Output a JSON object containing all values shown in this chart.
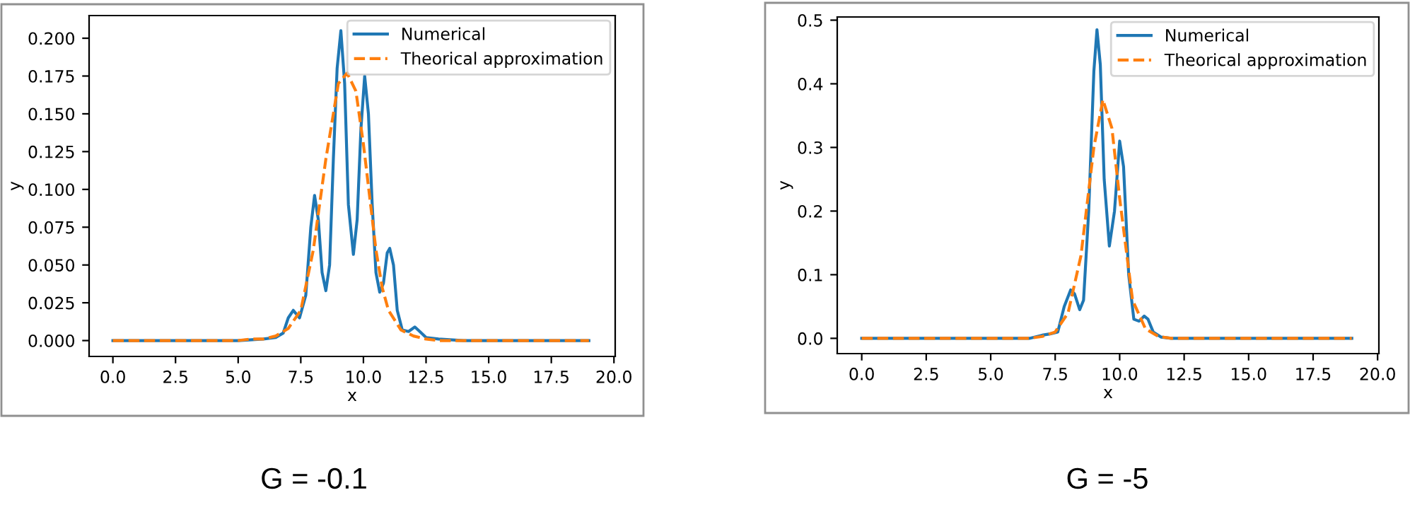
{
  "chart_data": [
    {
      "type": "line",
      "xlabel": "x",
      "ylabel": "y",
      "xlim": [
        -0.95,
        20.05
      ],
      "ylim": [
        -0.0105,
        0.215
      ],
      "xticks": [
        {
          "value": 0,
          "label": "0.0"
        },
        {
          "value": 2.5,
          "label": "2.5"
        },
        {
          "value": 5,
          "label": "5.0"
        },
        {
          "value": 7.5,
          "label": "7.5"
        },
        {
          "value": 10,
          "label": "10.0"
        },
        {
          "value": 12.5,
          "label": "12.5"
        },
        {
          "value": 15,
          "label": "15.0"
        },
        {
          "value": 17.5,
          "label": "17.5"
        },
        {
          "value": 20,
          "label": "20.0"
        }
      ],
      "yticks": [
        {
          "value": 0,
          "label": "0.000"
        },
        {
          "value": 0.025,
          "label": "0.025"
        },
        {
          "value": 0.05,
          "label": "0.050"
        },
        {
          "value": 0.075,
          "label": "0.075"
        },
        {
          "value": 0.1,
          "label": "0.100"
        },
        {
          "value": 0.125,
          "label": "0.125"
        },
        {
          "value": 0.15,
          "label": "0.150"
        },
        {
          "value": 0.175,
          "label": "0.175"
        },
        {
          "value": 0.2,
          "label": "0.200"
        }
      ],
      "legend": "top right",
      "grid": false,
      "annotations": [
        "G = -0.1"
      ],
      "series": [
        {
          "name": "Numerical",
          "color": "#1f77b4",
          "line_style": "solid",
          "x": [
            0,
            5,
            6,
            6.5,
            6.8,
            7.0,
            7.2,
            7.45,
            7.7,
            7.9,
            8.05,
            8.2,
            8.35,
            8.5,
            8.65,
            8.8,
            8.95,
            9.1,
            9.25,
            9.4,
            9.6,
            9.75,
            9.9,
            10.05,
            10.2,
            10.35,
            10.5,
            10.65,
            10.8,
            10.95,
            11.05,
            11.2,
            11.35,
            11.55,
            11.8,
            12.05,
            12.25,
            12.5,
            13,
            14,
            19
          ],
          "values": [
            0,
            0,
            0.001,
            0.002,
            0.005,
            0.015,
            0.02,
            0.015,
            0.03,
            0.075,
            0.096,
            0.08,
            0.045,
            0.033,
            0.05,
            0.12,
            0.18,
            0.205,
            0.17,
            0.09,
            0.057,
            0.08,
            0.14,
            0.175,
            0.15,
            0.09,
            0.045,
            0.032,
            0.038,
            0.058,
            0.061,
            0.05,
            0.02,
            0.007,
            0.006,
            0.009,
            0.006,
            0.002,
            0.001,
            0,
            0
          ]
        },
        {
          "name": "Theorical approximation",
          "color": "#ff7f0e",
          "line_style": "dashed",
          "x": [
            0,
            5,
            5.5,
            6,
            6.5,
            7,
            7.5,
            8,
            8.5,
            9,
            9.35,
            9.7,
            10,
            10.5,
            10.75,
            11,
            11.5,
            12,
            12.5,
            13,
            19
          ],
          "values": [
            0,
            0,
            0.001,
            0.001,
            0.003,
            0.008,
            0.02,
            0.06,
            0.12,
            0.17,
            0.177,
            0.165,
            0.13,
            0.06,
            0.035,
            0.02,
            0.007,
            0.003,
            0.001,
            0,
            0
          ]
        }
      ]
    },
    {
      "type": "line",
      "xlabel": "x",
      "ylabel": "y",
      "xlim": [
        -0.95,
        20.05
      ],
      "ylim": [
        -0.024,
        0.505
      ],
      "xticks": [
        {
          "value": 0,
          "label": "0.0"
        },
        {
          "value": 2.5,
          "label": "2.5"
        },
        {
          "value": 5,
          "label": "5.0"
        },
        {
          "value": 7.5,
          "label": "7.5"
        },
        {
          "value": 10,
          "label": "10.0"
        },
        {
          "value": 12.5,
          "label": "12.5"
        },
        {
          "value": 15,
          "label": "15.0"
        },
        {
          "value": 17.5,
          "label": "17.5"
        },
        {
          "value": 20,
          "label": "20.0"
        }
      ],
      "yticks": [
        {
          "value": 0,
          "label": "0.0"
        },
        0.1,
        0.2,
        0.3,
        0.4,
        0.5
      ],
      "legend": "top right",
      "grid": false,
      "annotations": [
        "G = -5"
      ],
      "series": [
        {
          "name": "Numerical",
          "color": "#1f77b4",
          "line_style": "solid",
          "x": [
            0,
            6.5,
            7,
            7.3,
            7.6,
            7.85,
            8.1,
            8.25,
            8.45,
            8.6,
            8.8,
            9.0,
            9.12,
            9.25,
            9.4,
            9.6,
            9.8,
            10.0,
            10.15,
            10.35,
            10.55,
            10.75,
            10.95,
            11.1,
            11.3,
            11.6,
            12,
            19
          ],
          "values": [
            0,
            0,
            0.005,
            0.007,
            0.01,
            0.05,
            0.076,
            0.07,
            0.045,
            0.06,
            0.2,
            0.42,
            0.485,
            0.43,
            0.25,
            0.145,
            0.2,
            0.31,
            0.27,
            0.1,
            0.03,
            0.027,
            0.035,
            0.03,
            0.01,
            0.002,
            0,
            0
          ]
        },
        {
          "name": "Theorical approximation",
          "color": "#ff7f0e",
          "line_style": "dashed",
          "x": [
            0,
            6.5,
            7,
            7.5,
            8,
            8.5,
            9,
            9.35,
            9.7,
            10,
            10.5,
            11,
            11.5,
            12,
            19
          ],
          "values": [
            0,
            0,
            0.003,
            0.01,
            0.04,
            0.13,
            0.3,
            0.375,
            0.33,
            0.22,
            0.06,
            0.015,
            0.003,
            0,
            0
          ]
        }
      ]
    }
  ]
}
